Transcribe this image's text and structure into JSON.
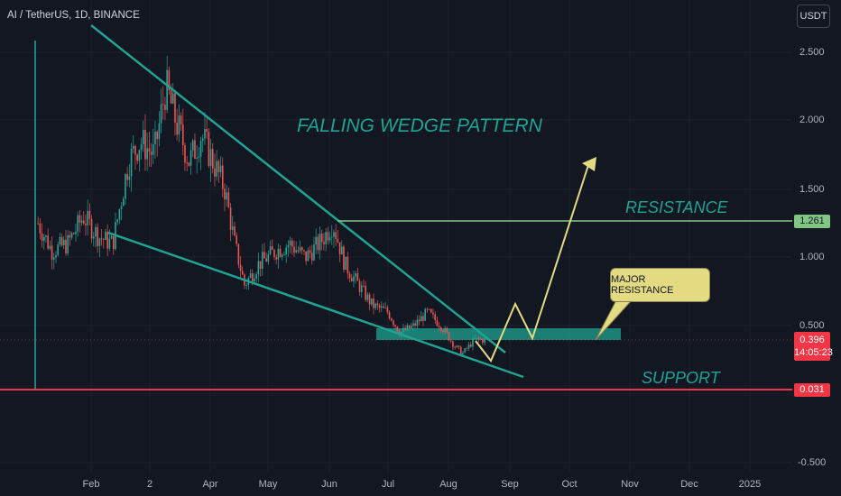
{
  "header": {
    "symbol": "AI / TetherUS, 1D, BINANCE",
    "currency_button": "USDT"
  },
  "price_axis": {
    "labels": [
      "2.500",
      "2.000",
      "1.500",
      "1.000",
      "0.500",
      "-0.500"
    ]
  },
  "time_axis": {
    "labels": [
      "Feb",
      "2",
      "Apr",
      "May",
      "Jun",
      "Jul",
      "Aug",
      "Sep",
      "Oct",
      "Nov",
      "Dec",
      "2025"
    ]
  },
  "price_tags": {
    "resistance": "1.261",
    "current_price": "0.396",
    "countdown": "14:05:23",
    "support": "0.031"
  },
  "annotations": {
    "pattern_title": "FALLING WEDGE PATTERN",
    "resistance_label": "RESISTANCE",
    "support_label": "SUPPORT",
    "major_resistance_label": "MAJOR RESISTANCE"
  },
  "colors": {
    "background": "#131722",
    "bull": "#26a69a",
    "bear": "#ef5350",
    "wedge_line": "#1fa392",
    "resistance_line": "#81c784",
    "support_line": "#f23645",
    "projection": "#e3da82"
  },
  "chart_data": {
    "type": "candlestick",
    "symbol": "AI / TetherUS",
    "timeframe": "1D",
    "exchange": "BINANCE",
    "y_range": [
      -0.5,
      2.5
    ],
    "close_path": [
      {
        "date": "2024-01-05",
        "close": 1.25
      },
      {
        "date": "2024-01-12",
        "close": 1.05
      },
      {
        "date": "2024-01-20",
        "close": 1.1
      },
      {
        "date": "2024-01-28",
        "close": 1.3
      },
      {
        "date": "2024-02-05",
        "close": 1.15
      },
      {
        "date": "2024-02-12",
        "close": 1.1
      },
      {
        "date": "2024-02-20",
        "close": 1.7
      },
      {
        "date": "2024-02-26",
        "close": 1.85
      },
      {
        "date": "2024-03-04",
        "close": 1.75
      },
      {
        "date": "2024-03-10",
        "close": 2.25
      },
      {
        "date": "2024-03-15",
        "close": 2.0
      },
      {
        "date": "2024-03-22",
        "close": 1.7
      },
      {
        "date": "2024-03-28",
        "close": 1.9
      },
      {
        "date": "2024-04-03",
        "close": 1.7
      },
      {
        "date": "2024-04-09",
        "close": 1.5
      },
      {
        "date": "2024-04-14",
        "close": 1.1
      },
      {
        "date": "2024-04-19",
        "close": 0.8
      },
      {
        "date": "2024-04-26",
        "close": 0.95
      },
      {
        "date": "2024-05-05",
        "close": 1.05
      },
      {
        "date": "2024-05-12",
        "close": 1.1
      },
      {
        "date": "2024-05-20",
        "close": 1.0
      },
      {
        "date": "2024-05-28",
        "close": 1.12
      },
      {
        "date": "2024-06-03",
        "close": 1.25
      },
      {
        "date": "2024-06-09",
        "close": 0.95
      },
      {
        "date": "2024-06-16",
        "close": 0.8
      },
      {
        "date": "2024-06-23",
        "close": 0.65
      },
      {
        "date": "2024-07-01",
        "close": 0.6
      },
      {
        "date": "2024-07-07",
        "close": 0.45
      },
      {
        "date": "2024-07-14",
        "close": 0.5
      },
      {
        "date": "2024-07-21",
        "close": 0.6
      },
      {
        "date": "2024-07-28",
        "close": 0.5
      },
      {
        "date": "2024-08-04",
        "close": 0.35
      },
      {
        "date": "2024-08-08",
        "close": 0.3
      },
      {
        "date": "2024-08-14",
        "close": 0.4
      },
      {
        "date": "2024-08-20",
        "close": 0.396
      }
    ],
    "lines": {
      "wedge_upper": [
        {
          "date": "2024-01-01",
          "value": 3.0
        },
        {
          "date": "2024-09-01",
          "value": 0.45
        }
      ],
      "wedge_lower": [
        {
          "date": "2024-01-20",
          "value": 1.2
        },
        {
          "date": "2024-09-03",
          "value": 0.15
        }
      ],
      "resistance": 1.261,
      "support": 0.031,
      "major_resistance_zone": [
        0.4,
        0.47
      ]
    },
    "projection": [
      {
        "date": "2024-08-23",
        "value": 0.43
      },
      {
        "date": "2024-08-30",
        "value": 0.25
      },
      {
        "date": "2024-09-06",
        "value": 0.62
      },
      {
        "date": "2024-09-12",
        "value": 0.42
      },
      {
        "date": "2024-10-15",
        "value": 1.8
      }
    ]
  }
}
